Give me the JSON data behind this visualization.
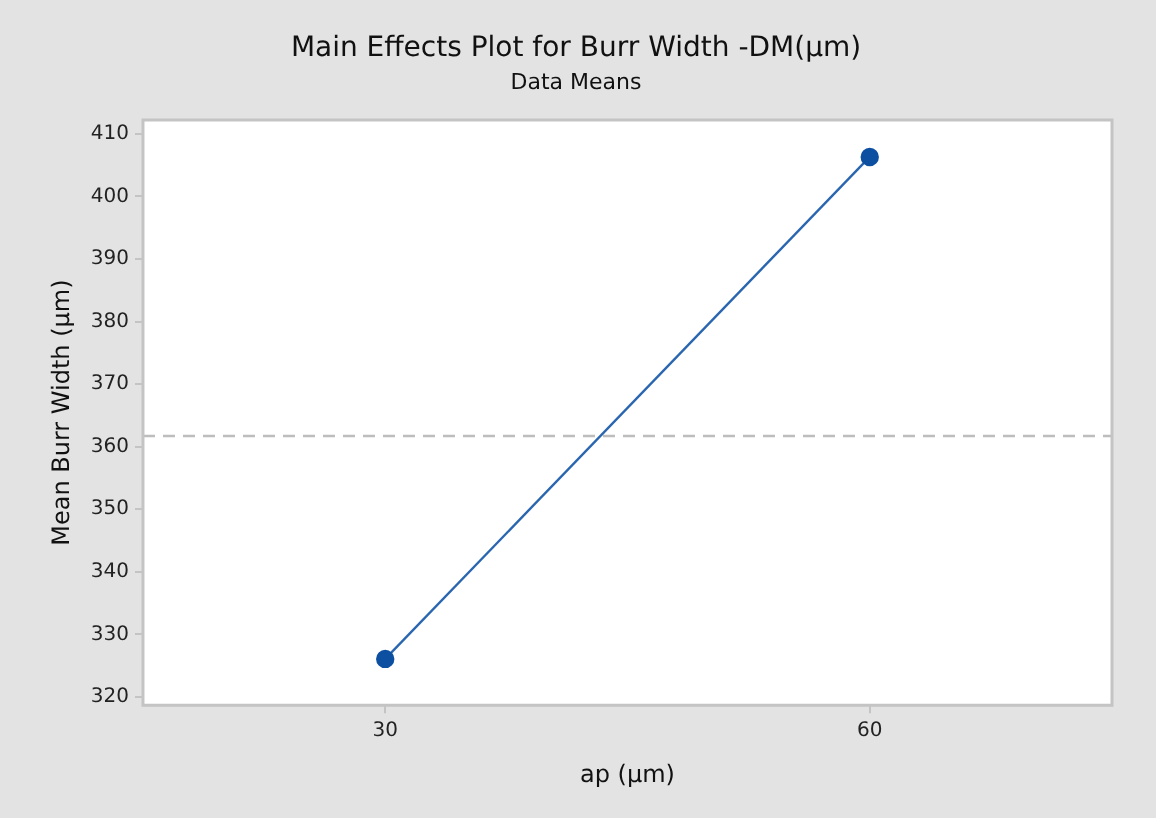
{
  "chart_data": {
    "type": "line",
    "title": "Main Effects Plot for Burr Width -DM(µm)",
    "subtitle": "Data Means",
    "xlabel": "ap (µm)",
    "ylabel": "Mean Burr Width (µm)",
    "categories": [
      "30",
      "60"
    ],
    "series": [
      {
        "color": "#2a66b0",
        "values": [
          326.1,
          406.3
        ]
      }
    ],
    "marker": "circle",
    "line_style": "solid",
    "ylim": [
      318.7,
      412.2
    ],
    "yticks": [
      320,
      330,
      340,
      350,
      360,
      370,
      380,
      390,
      400,
      410
    ],
    "grid": false,
    "legend": false,
    "ref_lines": [
      {
        "axis": "y",
        "value": 361.7,
        "color": "#bdbdbd",
        "line_style": "dashed"
      }
    ]
  }
}
